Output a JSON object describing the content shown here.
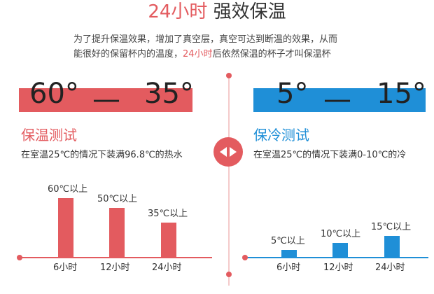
{
  "header": {
    "title_accent": "24小时",
    "title_rest": " 强效保温",
    "desc_line1": "为了提升保温效果，增加了真空层，真空可达到断温的效果，从而",
    "desc_line2_a": "能很好的保留杯内的温度，",
    "desc_line2_accent": "24小时",
    "desc_line2_b": "后依然保温的杯子才叫保温杯"
  },
  "hot": {
    "range_from": "60°",
    "range_dash": "—",
    "range_to": "35°",
    "title": "保温测试",
    "subtitle": "在室温25℃的情况下装满96.8℃的热水",
    "color": "#e35b5f"
  },
  "cold": {
    "range_from": "5°",
    "range_dash": "—",
    "range_to": "15°",
    "title": "保冷测试",
    "subtitle": "在室温25℃的情况下装满0-10℃的冷",
    "color": "#1f8fd7"
  },
  "chart_data": [
    {
      "type": "bar",
      "title": "保温测试",
      "categories": [
        "6小时",
        "12小时",
        "24小时"
      ],
      "values": [
        60,
        50,
        35
      ],
      "data_labels": [
        "60℃以上",
        "50℃以上",
        "35℃以上"
      ],
      "ylim": [
        0,
        75
      ],
      "color": "#e35b5f"
    },
    {
      "type": "bar",
      "title": "保冷测试",
      "categories": [
        "6小时",
        "12小时",
        "24小时"
      ],
      "values": [
        5,
        10,
        15
      ],
      "data_labels": [
        "5℃以上",
        "10℃以上",
        "15℃以上"
      ],
      "ylim": [
        0,
        50
      ],
      "color": "#1f8fd7"
    }
  ]
}
